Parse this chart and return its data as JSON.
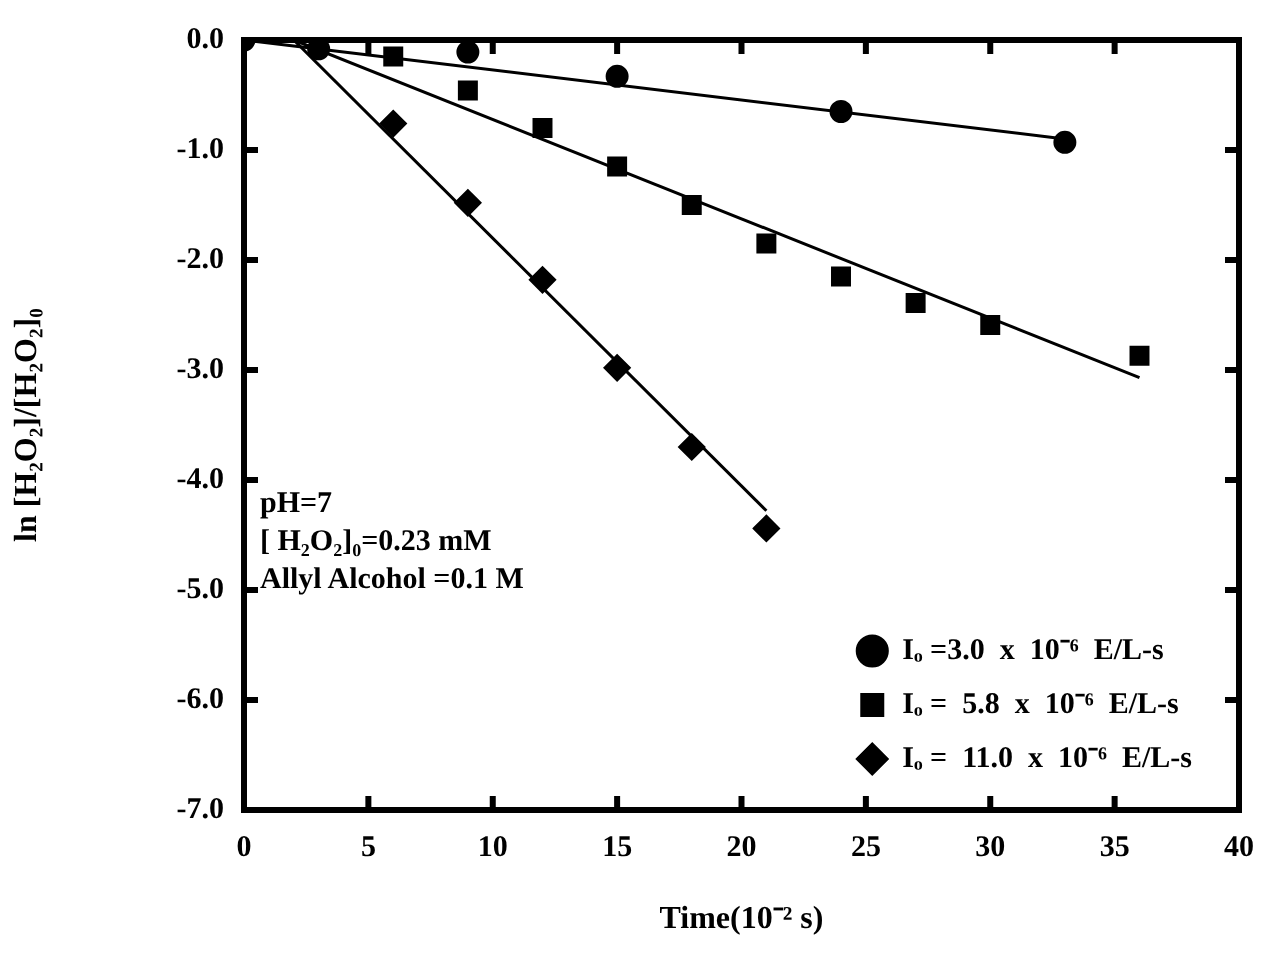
{
  "chart_data": {
    "type": "scatter",
    "xlabel": "Time(10⁻² s)",
    "ylabel": "ln [H₂O₂]/[H₂O₂]₀",
    "annotations": [
      "pH=7",
      "[ H₂O₂]₀=0.23  mM",
      "Allyl  Alcohol  =0.1  M"
    ],
    "xlim": [
      0,
      40
    ],
    "xticks": [
      0,
      5,
      10,
      15,
      20,
      25,
      30,
      35,
      40
    ],
    "ylim": [
      -7,
      0
    ],
    "yticks": [
      {
        "value": -7,
        "label": "-7.0"
      },
      {
        "value": -6,
        "label": "-6.0"
      },
      {
        "value": -5,
        "label": "-5.0"
      },
      {
        "value": -4,
        "label": "-4.0"
      },
      {
        "value": -3,
        "label": "-3.0"
      },
      {
        "value": -2,
        "label": "-2.0"
      },
      {
        "value": -1,
        "label": "-1.0"
      },
      {
        "value": 0,
        "label": "0.0"
      }
    ],
    "grid": false,
    "legend": "bottom right",
    "series": [
      {
        "name": "Iₒ =3.0  x  10⁻⁶  E/L-s",
        "type": "scatter",
        "marker": "circle",
        "color": "#000000",
        "x": [
          0,
          3,
          9,
          15,
          24,
          33
        ],
        "values": [
          0,
          -0.08,
          -0.11,
          -0.33,
          -0.65,
          -0.93
        ]
      },
      {
        "name": "Iₒ =  5.8  x  10⁻⁶  E/L-s",
        "type": "scatter",
        "marker": "square",
        "color": "#000000",
        "x": [
          6,
          9,
          12,
          15,
          18,
          21,
          24,
          27,
          30,
          36
        ],
        "values": [
          -0.15,
          -0.46,
          -0.8,
          -1.15,
          -1.5,
          -1.85,
          -2.15,
          -2.39,
          -2.59,
          -2.87
        ]
      },
      {
        "name": "Iₒ =  11.0  x  10⁻⁶  E/L-s",
        "type": "scatter",
        "marker": "diamond",
        "color": "#000000",
        "x": [
          6,
          9,
          12,
          15,
          18,
          21
        ],
        "values": [
          -0.76,
          -1.48,
          -2.18,
          -2.98,
          -3.7,
          -4.44
        ]
      },
      {
        "type": "line",
        "marker": "none",
        "color": "#000000",
        "x": [
          0,
          33
        ],
        "values": [
          0,
          -0.9
        ]
      },
      {
        "type": "line",
        "marker": "none",
        "color": "#000000",
        "x": [
          2,
          36
        ],
        "values": [
          0,
          -3.07
        ]
      },
      {
        "type": "line",
        "marker": "none",
        "color": "#000000",
        "x": [
          2,
          21
        ],
        "values": [
          0,
          -4.28
        ]
      }
    ]
  }
}
